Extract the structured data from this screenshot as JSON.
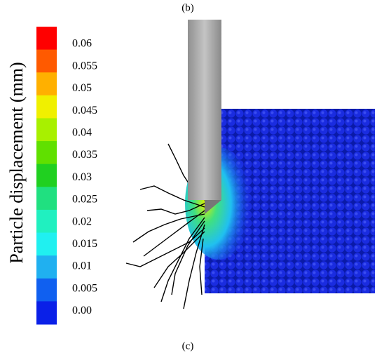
{
  "header": {
    "label": "(b)"
  },
  "colorbar": {
    "title": "Particle displacement (mm)",
    "labels": [
      "0.06",
      "0.055",
      "0.05",
      "0.045",
      "0.04",
      "0.035",
      "0.03",
      "0.025",
      "0.02",
      "0.015",
      "0.01",
      "0.005",
      "0.00"
    ],
    "colors": [
      "#ff0000",
      "#ff5a00",
      "#ffb000",
      "#f0f000",
      "#a8f000",
      "#60e000",
      "#20d020",
      "#20e080",
      "#20f0c0",
      "#20f0f0",
      "#20b0f0",
      "#1060f0",
      "#0a20e8"
    ]
  },
  "footer": {
    "label": "(c)"
  }
}
